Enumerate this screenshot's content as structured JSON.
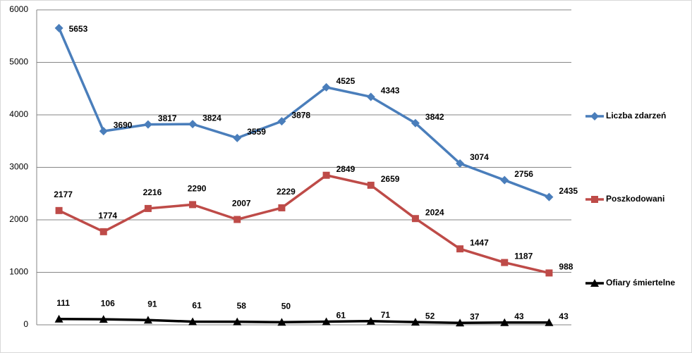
{
  "chart_data": {
    "type": "line",
    "categories": [
      null,
      null,
      null,
      null,
      null,
      null,
      null,
      null,
      null,
      null,
      null,
      null
    ],
    "series": [
      {
        "name": "Liczba zdarzeń",
        "color": "#4a7ebb",
        "marker": "diamond",
        "values": [
          5653,
          3690,
          3817,
          3824,
          3559,
          3878,
          4525,
          4343,
          3842,
          3074,
          2756,
          2435
        ]
      },
      {
        "name": "Poszkodowani",
        "color": "#be4b48",
        "marker": "square",
        "values": [
          2177,
          1774,
          2216,
          2290,
          2007,
          2229,
          2849,
          2659,
          2024,
          1447,
          1187,
          988
        ]
      },
      {
        "name": "Ofiary śmiertelne",
        "color": "#000000",
        "marker": "triangle",
        "values": [
          111,
          106,
          91,
          61,
          58,
          50,
          61,
          71,
          52,
          37,
          43,
          43
        ]
      }
    ],
    "ylim": [
      0,
      6000
    ],
    "yticks": [
      0,
      1000,
      2000,
      3000,
      4000,
      5000,
      6000
    ],
    "grid": true,
    "legend": "right"
  }
}
